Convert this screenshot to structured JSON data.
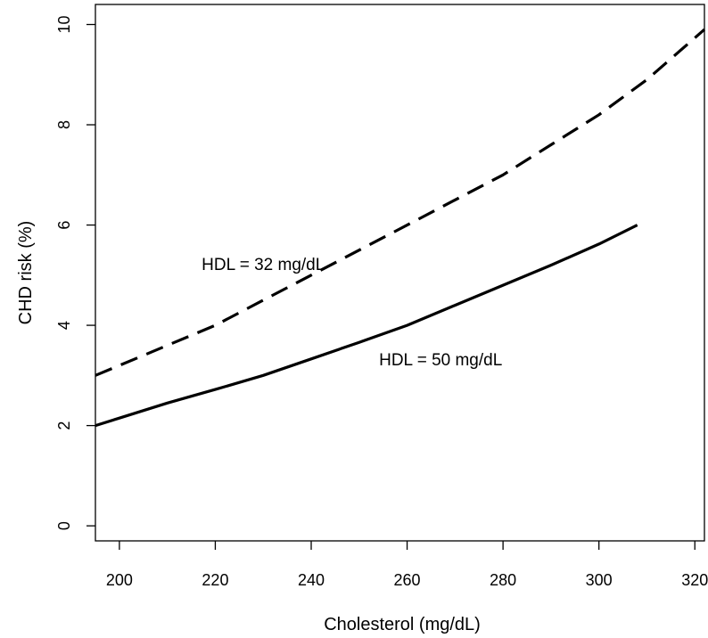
{
  "chart_data": {
    "type": "line",
    "title": "",
    "xlabel": "Cholesterol (mg/dL)",
    "ylabel": "CHD risk (%)",
    "xlim": [
      195,
      322
    ],
    "ylim": [
      -0.3,
      10.4
    ],
    "x_ticks": [
      200,
      220,
      240,
      260,
      280,
      300,
      320
    ],
    "y_ticks": [
      0,
      2,
      4,
      6,
      8,
      10
    ],
    "grid": false,
    "legend": "none",
    "series": [
      {
        "style": "dashed",
        "color": "#000000",
        "x": [
          195,
          200,
          210,
          220,
          230,
          240,
          250,
          260,
          270,
          280,
          290,
          300,
          310,
          322
        ],
        "y": [
          3.0,
          3.2,
          3.6,
          4.0,
          4.5,
          5.0,
          5.5,
          6.0,
          6.5,
          7.0,
          7.6,
          8.2,
          8.9,
          9.9
        ]
      },
      {
        "style": "solid",
        "color": "#000000",
        "x": [
          195,
          200,
          210,
          220,
          230,
          240,
          250,
          260,
          270,
          280,
          290,
          300,
          308
        ],
        "y": [
          2.0,
          2.15,
          2.45,
          2.72,
          3.0,
          3.33,
          3.66,
          4.0,
          4.4,
          4.8,
          5.2,
          5.62,
          6.0
        ]
      }
    ],
    "annotations": [
      {
        "text": "HDL = 32 mg/dL",
        "x": 230,
        "y": 5.1
      },
      {
        "text": "HDL = 50 mg/dL",
        "x": 267,
        "y": 3.2
      }
    ]
  }
}
